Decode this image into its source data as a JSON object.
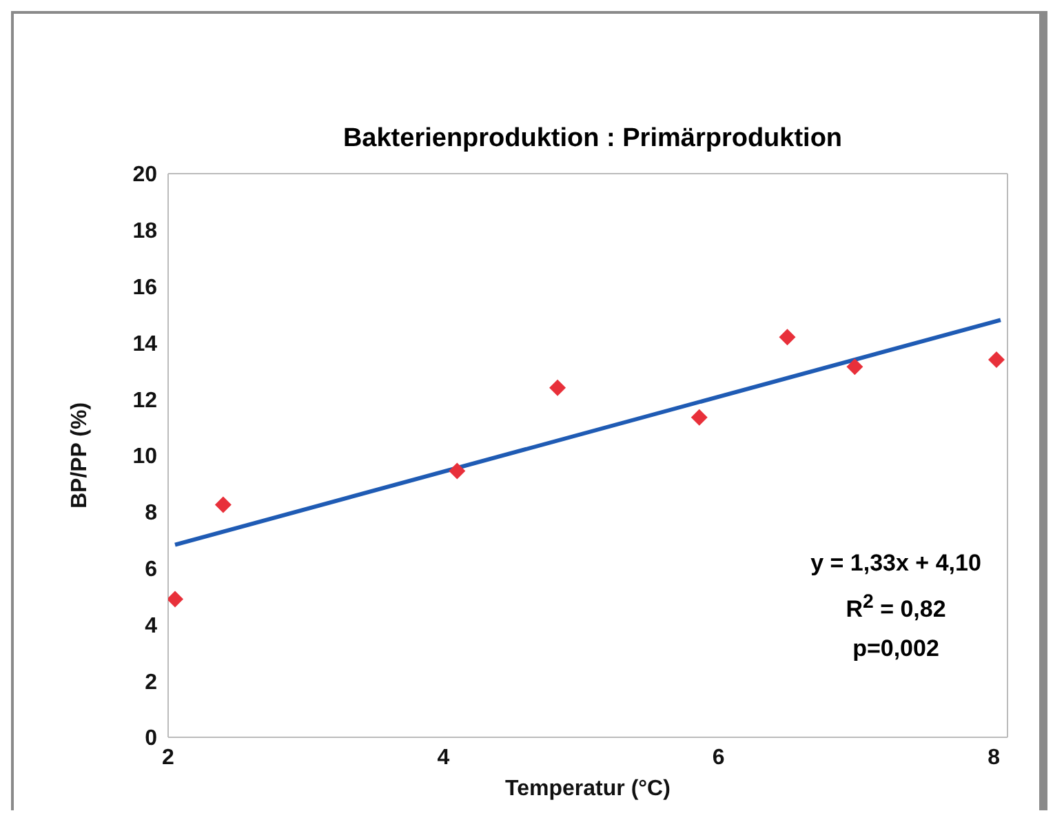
{
  "chart_data": {
    "type": "scatter",
    "title": "Bakterienproduktion : Primärproduktion",
    "xlabel": "Temperatur (°C)",
    "ylabel": "BP/PP (%)",
    "series": [
      {
        "color": "#e8303a",
        "marker": "diamond",
        "x": [
          2.05,
          2.4,
          4.1,
          4.83,
          5.86,
          6.5,
          6.99,
          8.02
        ],
        "values": [
          4.9,
          8.25,
          9.45,
          12.4,
          11.35,
          14.2,
          13.15,
          13.4
        ]
      },
      {
        "type": "line",
        "color": "#1f5bb4",
        "marker": "none",
        "x": [
          2.05,
          8.05
        ],
        "values": [
          6.83,
          14.81
        ]
      }
    ],
    "xlim": [
      2,
      8.1
    ],
    "xticks": [
      2,
      4,
      6,
      8
    ],
    "ylim": [
      0,
      20
    ],
    "yticks": [
      0,
      2,
      4,
      6,
      8,
      10,
      12,
      14,
      16,
      18,
      20
    ],
    "annotations": [
      "y = 1,33x + 4,10",
      "R$^{2}$ = 0,82",
      "p=0,002"
    ]
  }
}
